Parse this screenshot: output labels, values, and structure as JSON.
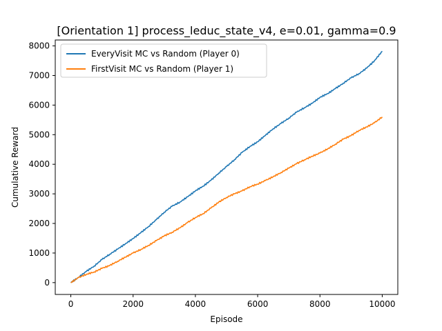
{
  "chart_data": {
    "type": "line",
    "title": "[Orientation 1] process_leduc_state_v4, e=0.01, gamma=0.9",
    "xlabel": "Episode",
    "ylabel": "Cumulative Reward",
    "xlim": [
      -500,
      10500
    ],
    "ylim": [
      -400,
      8200
    ],
    "xticks": [
      0,
      2000,
      4000,
      6000,
      8000,
      10000
    ],
    "yticks": [
      0,
      1000,
      2000,
      3000,
      4000,
      5000,
      6000,
      7000,
      8000
    ],
    "grid": false,
    "legend_position": "top-left",
    "series": [
      {
        "name": "EveryVisit MC vs Random (Player 0)",
        "color": "#1f77b4",
        "x": [
          0,
          250,
          500,
          750,
          1000,
          1250,
          1500,
          1750,
          2000,
          2250,
          2500,
          2750,
          3000,
          3250,
          3500,
          3750,
          4000,
          4250,
          4500,
          4750,
          5000,
          5250,
          5500,
          5750,
          6000,
          6250,
          6500,
          6750,
          7000,
          7250,
          7500,
          7750,
          8000,
          8250,
          8500,
          8750,
          9000,
          9250,
          9500,
          9750,
          10000
        ],
        "y": [
          0,
          180,
          380,
          560,
          780,
          960,
          1130,
          1310,
          1490,
          1690,
          1900,
          2130,
          2380,
          2580,
          2720,
          2900,
          3100,
          3260,
          3460,
          3700,
          3920,
          4150,
          4400,
          4600,
          4760,
          4980,
          5200,
          5380,
          5560,
          5760,
          5910,
          6060,
          6260,
          6390,
          6560,
          6740,
          6920,
          7060,
          7250,
          7500,
          7820
        ]
      },
      {
        "name": "FirstVisit MC vs Random (Player 1)",
        "color": "#ff7f0e",
        "x": [
          0,
          250,
          500,
          750,
          1000,
          1250,
          1500,
          1750,
          2000,
          2250,
          2500,
          2750,
          3000,
          3250,
          3500,
          3750,
          4000,
          4250,
          4500,
          4750,
          5000,
          5250,
          5500,
          5750,
          6000,
          6250,
          6500,
          6750,
          7000,
          7250,
          7500,
          7750,
          8000,
          8250,
          8500,
          8750,
          9000,
          9250,
          9500,
          9750,
          10000
        ],
        "y": [
          0,
          170,
          280,
          360,
          480,
          580,
          720,
          860,
          1000,
          1120,
          1260,
          1420,
          1580,
          1700,
          1850,
          2030,
          2200,
          2330,
          2520,
          2720,
          2880,
          3000,
          3100,
          3240,
          3330,
          3450,
          3580,
          3720,
          3870,
          4020,
          4150,
          4270,
          4380,
          4520,
          4680,
          4850,
          4970,
          5140,
          5260,
          5400,
          5600
        ]
      }
    ]
  }
}
